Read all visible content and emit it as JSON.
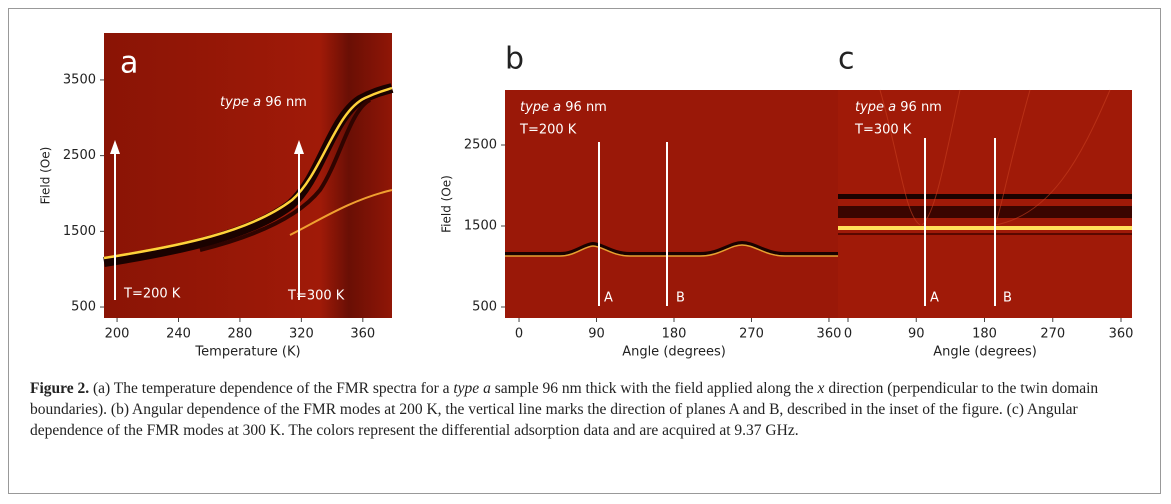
{
  "panels": [
    {
      "letter": "a",
      "xlabel": "Temperature (K)",
      "ylabel": "Field (Oe)",
      "xlim": [
        191.5,
        379
      ],
      "ylim": [
        355,
        4120
      ],
      "xticks": [
        200,
        240,
        280,
        320,
        360
      ],
      "yticks": [
        500,
        1500,
        2500,
        3500
      ],
      "annotation": [
        "type a",
        " 96 nm"
      ],
      "markers": [
        "T=200 K",
        "T=300 K"
      ]
    },
    {
      "letter": "b",
      "xlabel": "Angle (degrees)",
      "ylabel": "Field (Oe)",
      "xlim": [
        -16.3,
        376.3
      ],
      "ylim": [
        364,
        3179
      ],
      "xticks": [
        0,
        90,
        180,
        270,
        360
      ],
      "yticks": [
        500,
        1500,
        2500
      ],
      "annotation": [
        "type a",
        " 96 nm"
      ],
      "temperature": "T=200 K",
      "markers": [
        "A",
        "B"
      ]
    },
    {
      "letter": "c",
      "xlabel": "Angle (degrees)",
      "xlim": [
        -13.2,
        374.5
      ],
      "xticks": [
        0,
        90,
        180,
        270,
        360
      ],
      "annotation": [
        "type a",
        " 96 nm"
      ],
      "temperature": "T=300 K",
      "markers": [
        "A",
        "B"
      ]
    }
  ],
  "caption": [
    "Figure 2.",
    " (a) The temperature dependence of the FMR spectra for a ",
    "type a",
    " sample  96  nm  thick  with the field applied along the ",
    "x",
    " direction (perpendicular to the twin domain boundaries). (b) Angular dependence of the FMR modes at 200 K, the vertical line marks the direction of planes A and B, described in the inset of the figure. (c) Angular dependence of the FMR modes at 300 K. The colors represent the differential adsorption data and are acquired at 9.37 GHz."
  ]
}
